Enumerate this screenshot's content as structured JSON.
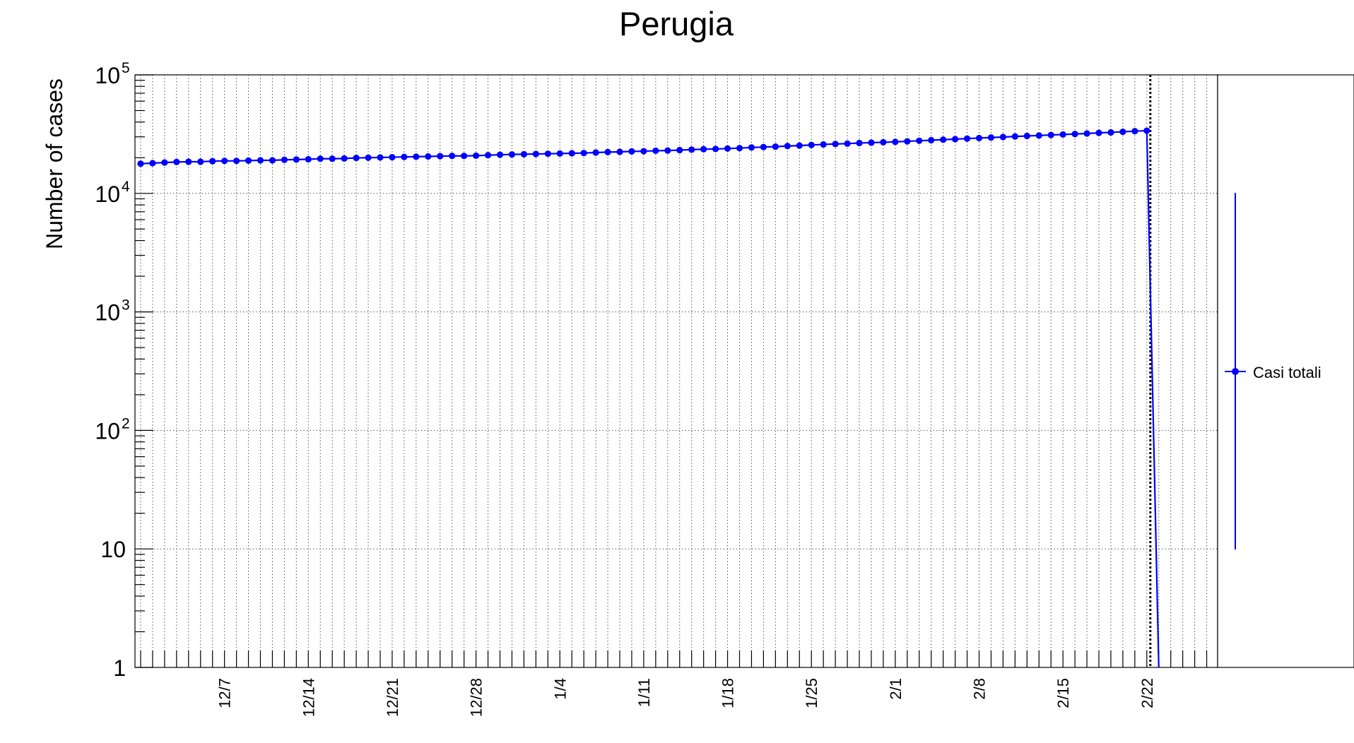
{
  "chart_data": {
    "type": "line",
    "title": "Perugia",
    "ylabel": "Number of cases",
    "xlabel": "",
    "y_scale": "log",
    "ylim": [
      1,
      100000
    ],
    "y_tick_labels": [
      {
        "value": 1,
        "base": "1",
        "exp": ""
      },
      {
        "value": 10,
        "base": "10",
        "exp": ""
      },
      {
        "value": 100,
        "base": "10",
        "exp": "2"
      },
      {
        "value": 1000,
        "base": "10",
        "exp": "3"
      },
      {
        "value": 10000,
        "base": "10",
        "exp": "4"
      },
      {
        "value": 100000,
        "base": "10",
        "exp": "5"
      }
    ],
    "x_tick_labels": [
      "12/7",
      "12/14",
      "12/21",
      "12/28",
      "1/4",
      "1/11",
      "1/18",
      "1/25",
      "2/1",
      "2/8",
      "2/15",
      "2/22"
    ],
    "grid": true,
    "legend_position": "right",
    "marker_line_date": "2/22",
    "series": [
      {
        "name": "Casi totali",
        "color": "#0000ff",
        "points": [
          [
            "11/30",
            17800
          ],
          [
            "12/1",
            18000
          ],
          [
            "12/2",
            18200
          ],
          [
            "12/3",
            18400
          ],
          [
            "12/4",
            18500
          ],
          [
            "12/5",
            18500
          ],
          [
            "12/6",
            18700
          ],
          [
            "12/7",
            18800
          ],
          [
            "12/8",
            18800
          ],
          [
            "12/9",
            18900
          ],
          [
            "12/10",
            19000
          ],
          [
            "12/11",
            19000
          ],
          [
            "12/12",
            19200
          ],
          [
            "12/13",
            19300
          ],
          [
            "12/14",
            19400
          ],
          [
            "12/15",
            19600
          ],
          [
            "12/16",
            19600
          ],
          [
            "12/17",
            19700
          ],
          [
            "12/18",
            19900
          ],
          [
            "12/19",
            20000
          ],
          [
            "12/20",
            20100
          ],
          [
            "12/21",
            20200
          ],
          [
            "12/22",
            20300
          ],
          [
            "12/23",
            20400
          ],
          [
            "12/24",
            20500
          ],
          [
            "12/25",
            20600
          ],
          [
            "12/26",
            20700
          ],
          [
            "12/27",
            20700
          ],
          [
            "12/28",
            20800
          ],
          [
            "12/29",
            21000
          ],
          [
            "12/30",
            21200
          ],
          [
            "12/31",
            21300
          ],
          [
            "1/1",
            21400
          ],
          [
            "1/2",
            21500
          ],
          [
            "1/3",
            21600
          ],
          [
            "1/4",
            21700
          ],
          [
            "1/5",
            21800
          ],
          [
            "1/6",
            21900
          ],
          [
            "1/7",
            22100
          ],
          [
            "1/8",
            22300
          ],
          [
            "1/9",
            22400
          ],
          [
            "1/10",
            22600
          ],
          [
            "1/11",
            22700
          ],
          [
            "1/12",
            22900
          ],
          [
            "1/13",
            23000
          ],
          [
            "1/14",
            23200
          ],
          [
            "1/15",
            23400
          ],
          [
            "1/16",
            23600
          ],
          [
            "1/17",
            23700
          ],
          [
            "1/18",
            23900
          ],
          [
            "1/19",
            24100
          ],
          [
            "1/20",
            24400
          ],
          [
            "1/21",
            24600
          ],
          [
            "1/22",
            24800
          ],
          [
            "1/23",
            25100
          ],
          [
            "1/24",
            25300
          ],
          [
            "1/25",
            25600
          ],
          [
            "1/26",
            25900
          ],
          [
            "1/27",
            26100
          ],
          [
            "1/28",
            26300
          ],
          [
            "1/29",
            26600
          ],
          [
            "1/30",
            26800
          ],
          [
            "1/31",
            27000
          ],
          [
            "2/1",
            27200
          ],
          [
            "2/2",
            27500
          ],
          [
            "2/3",
            27800
          ],
          [
            "2/4",
            28100
          ],
          [
            "2/5",
            28400
          ],
          [
            "2/6",
            28700
          ],
          [
            "2/7",
            29000
          ],
          [
            "2/8",
            29300
          ],
          [
            "2/9",
            29600
          ],
          [
            "2/10",
            29900
          ],
          [
            "2/11",
            30200
          ],
          [
            "2/12",
            30500
          ],
          [
            "2/13",
            30800
          ],
          [
            "2/14",
            31100
          ],
          [
            "2/15",
            31400
          ],
          [
            "2/16",
            31700
          ],
          [
            "2/17",
            32000
          ],
          [
            "2/18",
            32400
          ],
          [
            "2/19",
            32700
          ],
          [
            "2/20",
            33100
          ],
          [
            "2/21",
            33500
          ],
          [
            "2/22",
            33800
          ]
        ],
        "dropoff": [
          [
            "2/22",
            33800
          ],
          [
            "2/23",
            1
          ]
        ]
      }
    ]
  }
}
